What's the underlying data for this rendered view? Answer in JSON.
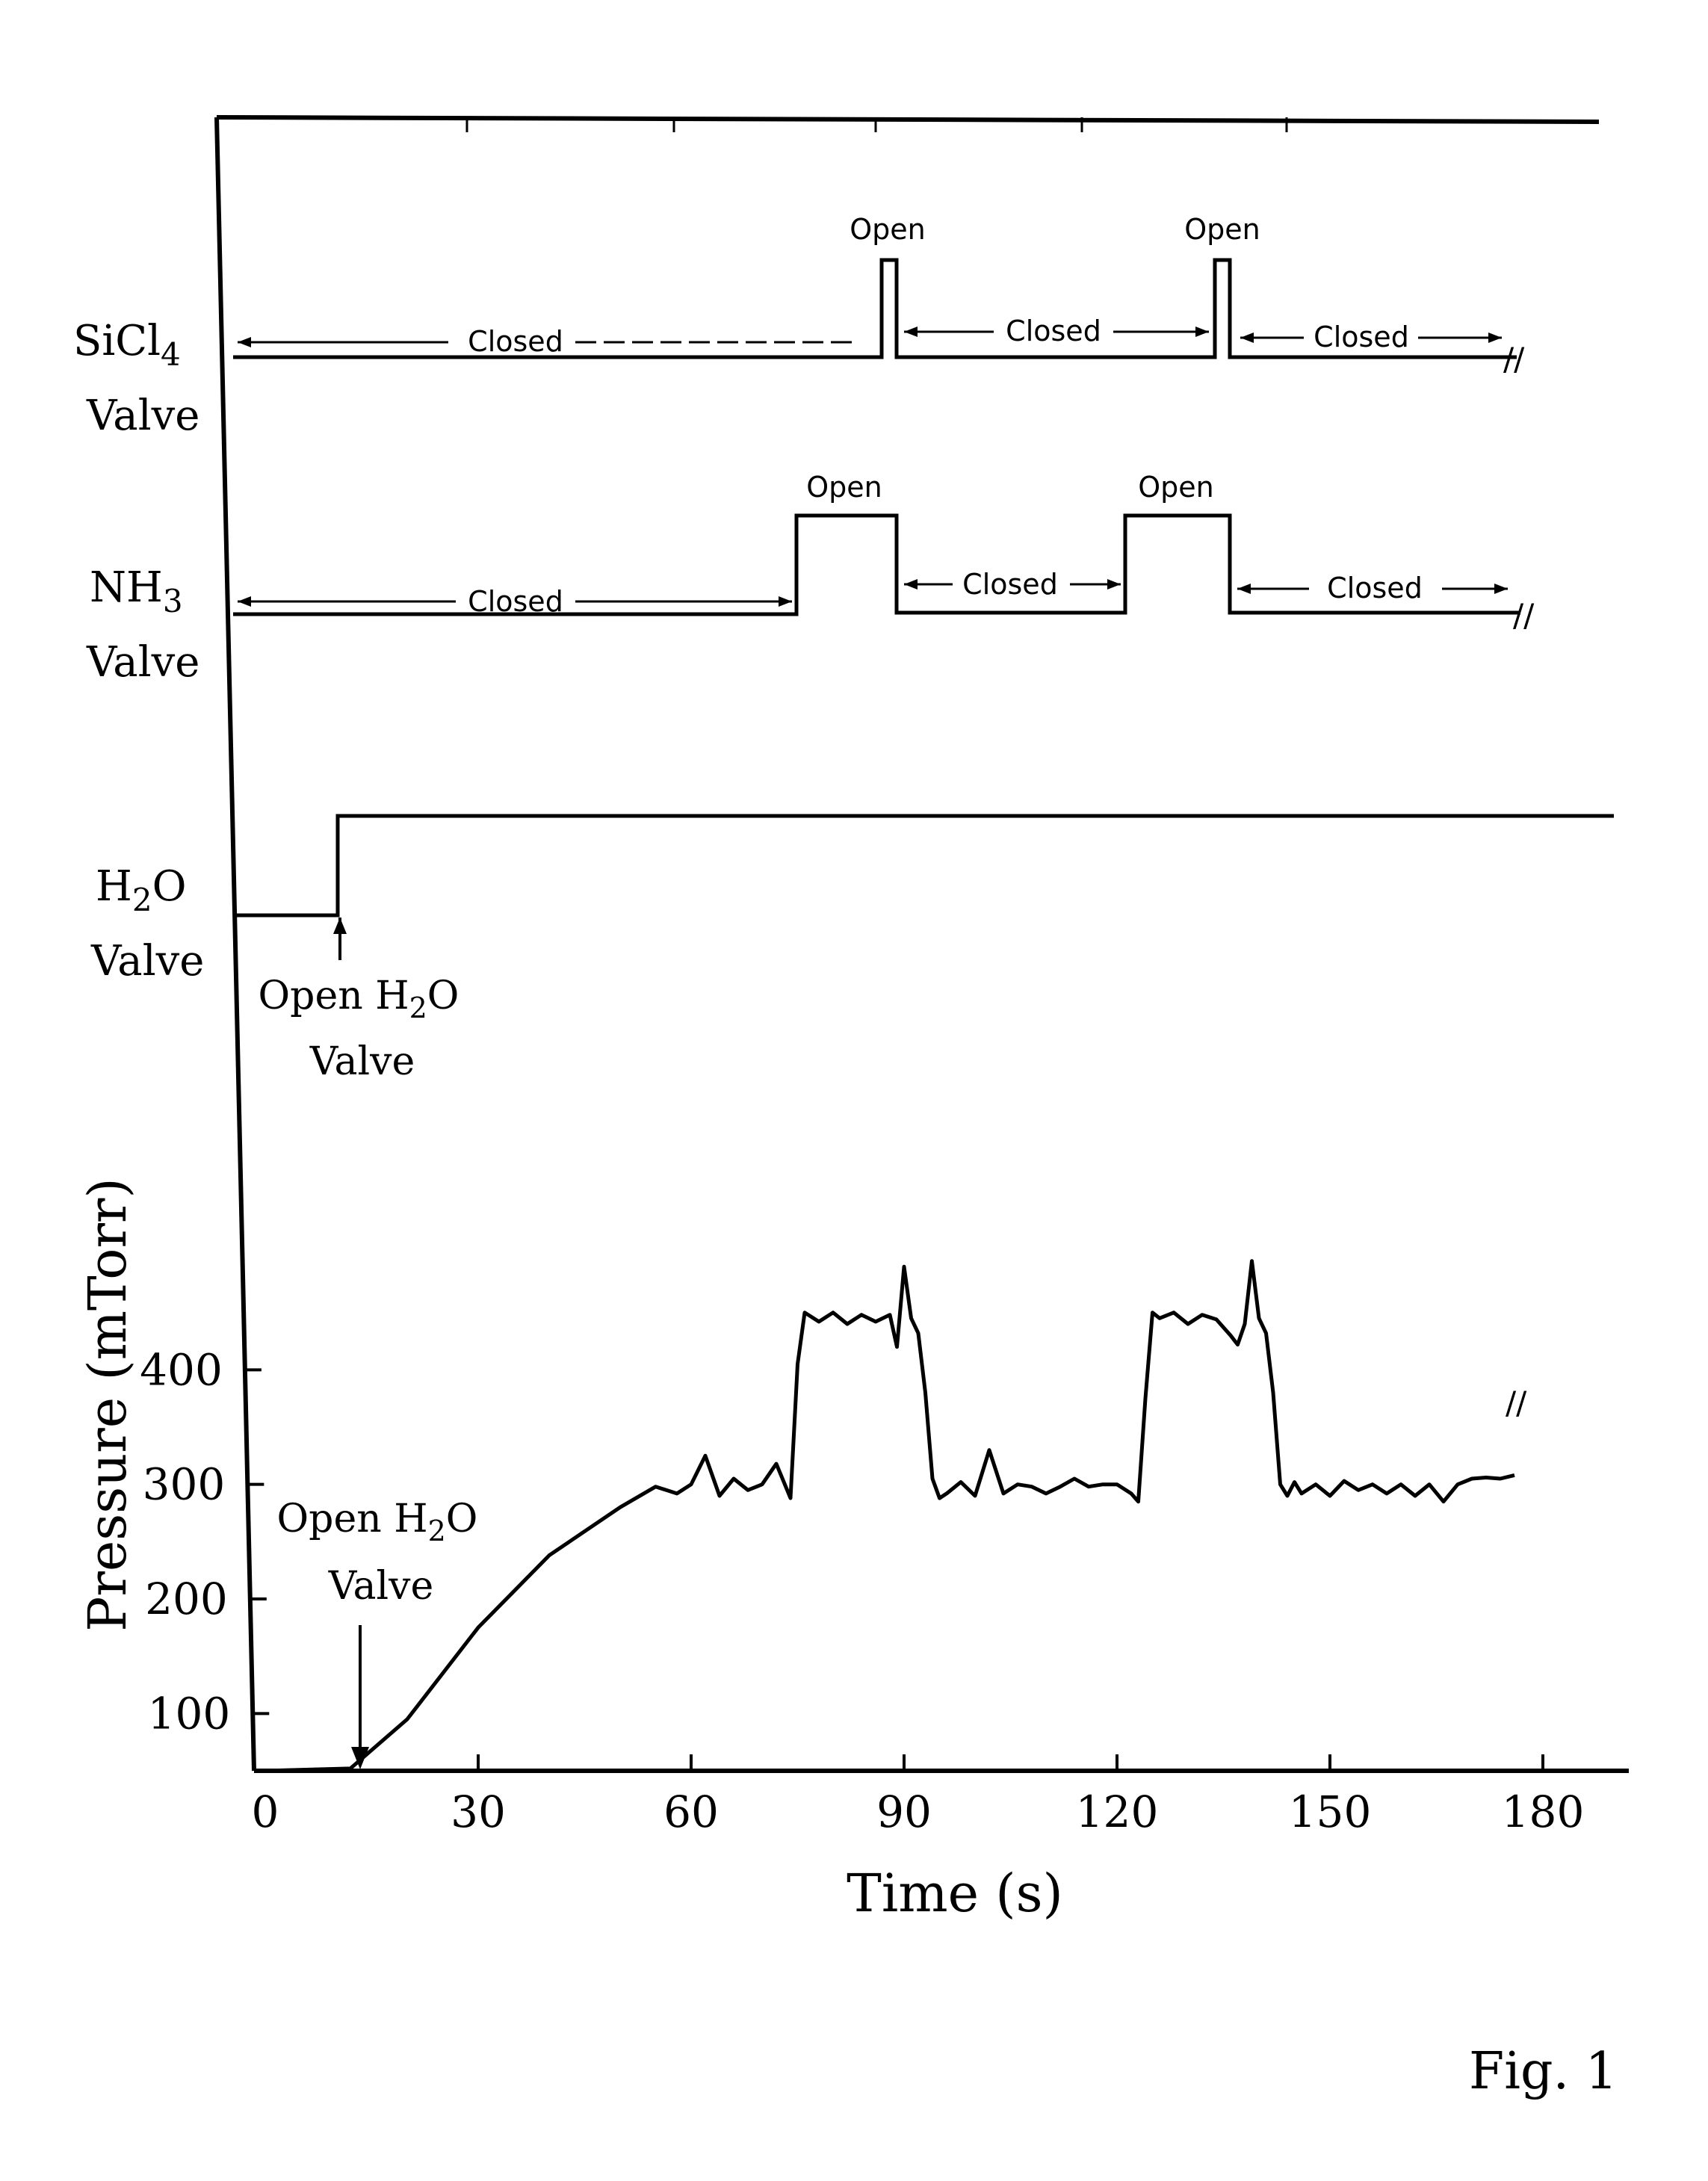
{
  "figure_label": "Fig. 1",
  "colors": {
    "ink": "#000000",
    "paper": "#ffffff"
  },
  "valves": {
    "sicl4": {
      "label_main": "SiCl",
      "label_sub": "4",
      "label_line2": "Valve",
      "state_closed": "Closed",
      "state_open": "Open",
      "open_intervals": [
        [
          87,
          89
        ],
        [
          135,
          137
        ]
      ],
      "break_symbol": "//"
    },
    "nh3": {
      "label_main": "NH",
      "label_sub": "3",
      "label_line2": "Valve",
      "state_closed": "Closed",
      "state_open": "Open",
      "open_intervals": [
        [
          74,
          89
        ],
        [
          123,
          137
        ]
      ],
      "break_symbol": "//"
    },
    "h2o": {
      "label_main": "H",
      "label_sub": "2",
      "label_main_end": "O",
      "label_line2": "Valve",
      "open_time": 9,
      "annotation_line1_a": "Open H",
      "annotation_line1_sub": "2",
      "annotation_line1_b": "O",
      "annotation_line2": "Valve"
    }
  },
  "pressure_annotation": {
    "line1_a": "Open H",
    "line1_sub": "2",
    "line1_b": "O",
    "line2": "Valve",
    "time": 12
  },
  "chart_data": {
    "type": "line",
    "xlabel": "Time (s)",
    "ylabel": "Pressure (mTorr)",
    "xticks": [
      0,
      30,
      60,
      90,
      120,
      150,
      180
    ],
    "yticks": [
      100,
      200,
      300,
      400
    ],
    "xlim": [
      0,
      180
    ],
    "ylim": [
      50,
      500
    ],
    "series": [
      {
        "x": [
          0,
          12,
          20,
          30,
          40,
          50,
          55,
          58,
          60,
          62,
          64,
          66,
          68,
          70,
          72,
          74,
          75,
          76,
          78,
          80,
          82,
          84,
          86,
          88,
          89,
          90,
          91,
          92,
          93,
          94,
          95,
          96,
          98,
          100,
          102,
          104,
          106,
          108,
          110,
          112,
          114,
          116,
          118,
          120,
          122,
          123,
          124,
          125,
          126,
          128,
          130,
          132,
          134,
          136,
          137,
          138,
          139,
          140,
          141,
          142,
          143,
          144,
          145,
          146,
          148,
          150,
          152,
          154,
          156,
          158,
          160,
          162,
          164,
          166,
          168,
          170,
          172,
          174,
          176
        ],
        "y": [
          50,
          52,
          95,
          175,
          238,
          280,
          298,
          292,
          300,
          325,
          290,
          305,
          295,
          300,
          318,
          288,
          405,
          450,
          442,
          450,
          440,
          448,
          442,
          448,
          420,
          490,
          445,
          432,
          380,
          305,
          288,
          292,
          302,
          290,
          330,
          292,
          300,
          298,
          292,
          298,
          305,
          298,
          300,
          300,
          292,
          285,
          375,
          450,
          445,
          450,
          440,
          448,
          444,
          430,
          422,
          440,
          495,
          445,
          432,
          380,
          300,
          290,
          302,
          292,
          300,
          290,
          303,
          295,
          300,
          292,
          300,
          290,
          300,
          285,
          300,
          305,
          306,
          305,
          308
        ]
      }
    ]
  }
}
